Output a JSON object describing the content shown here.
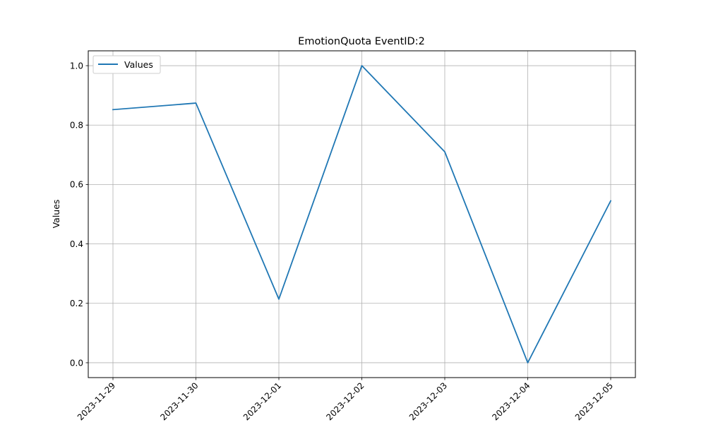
{
  "chart_data": {
    "type": "line",
    "title": "EmotionQuota EventID:2",
    "xlabel": "",
    "ylabel": "Values",
    "x": [
      "2023-11-29",
      "2023-11-30",
      "2023-12-01",
      "2023-12-02",
      "2023-12-03",
      "2023-12-04",
      "2023-12-05"
    ],
    "series": [
      {
        "name": "Values",
        "color": "#1f77b4",
        "values": [
          0.852,
          0.874,
          0.214,
          1.0,
          0.71,
          0.0,
          0.545
        ]
      }
    ],
    "yticks": [
      "0.0",
      "0.2",
      "0.4",
      "0.6",
      "0.8",
      "1.0"
    ],
    "ylim": [
      -0.05,
      1.05
    ],
    "grid": true,
    "legend": "upper left"
  }
}
